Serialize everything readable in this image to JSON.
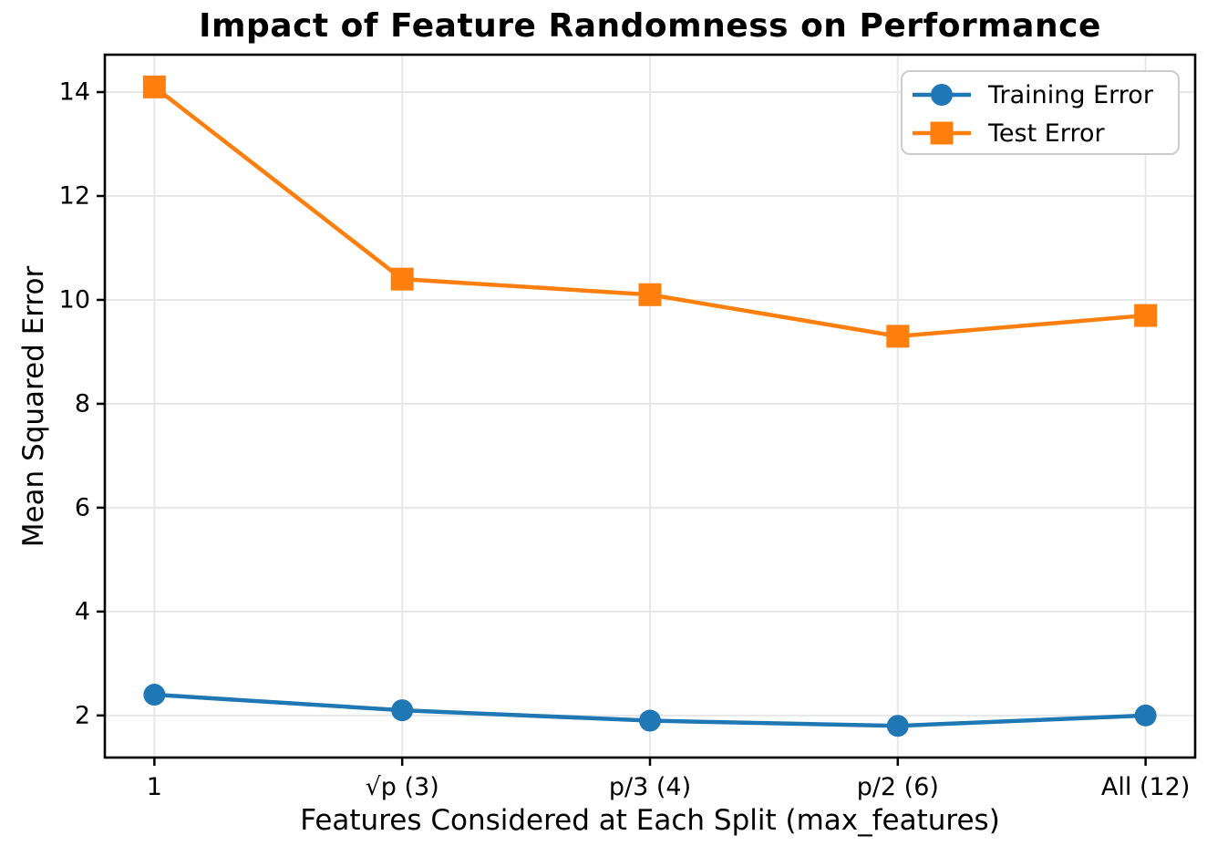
{
  "chart_data": {
    "type": "line",
    "title": "Impact of Feature Randomness on Performance",
    "xlabel": "Features Considered at Each Split (max_features)",
    "ylabel": "Mean Squared Error",
    "categories": [
      "1",
      "√p (3)",
      "p/3 (4)",
      "p/2 (6)",
      "All (12)"
    ],
    "yticks": [
      2,
      4,
      6,
      8,
      10,
      12,
      14
    ],
    "xlim": [
      -0.2,
      4.2
    ],
    "ylim": [
      1.19,
      14.72
    ],
    "grid": true,
    "legend_position": "upper right",
    "series": [
      {
        "name": "Training Error",
        "marker": "circle",
        "color": "#1f77b4",
        "values": [
          2.4,
          2.1,
          1.9,
          1.8,
          2.0
        ]
      },
      {
        "name": "Test Error",
        "marker": "square",
        "color": "#ff7f0e",
        "values": [
          14.1,
          10.4,
          10.1,
          9.3,
          9.7
        ]
      }
    ],
    "colors": {
      "grid": "#e7e7e7",
      "spine": "#000000",
      "tick_label": "#000000"
    }
  }
}
